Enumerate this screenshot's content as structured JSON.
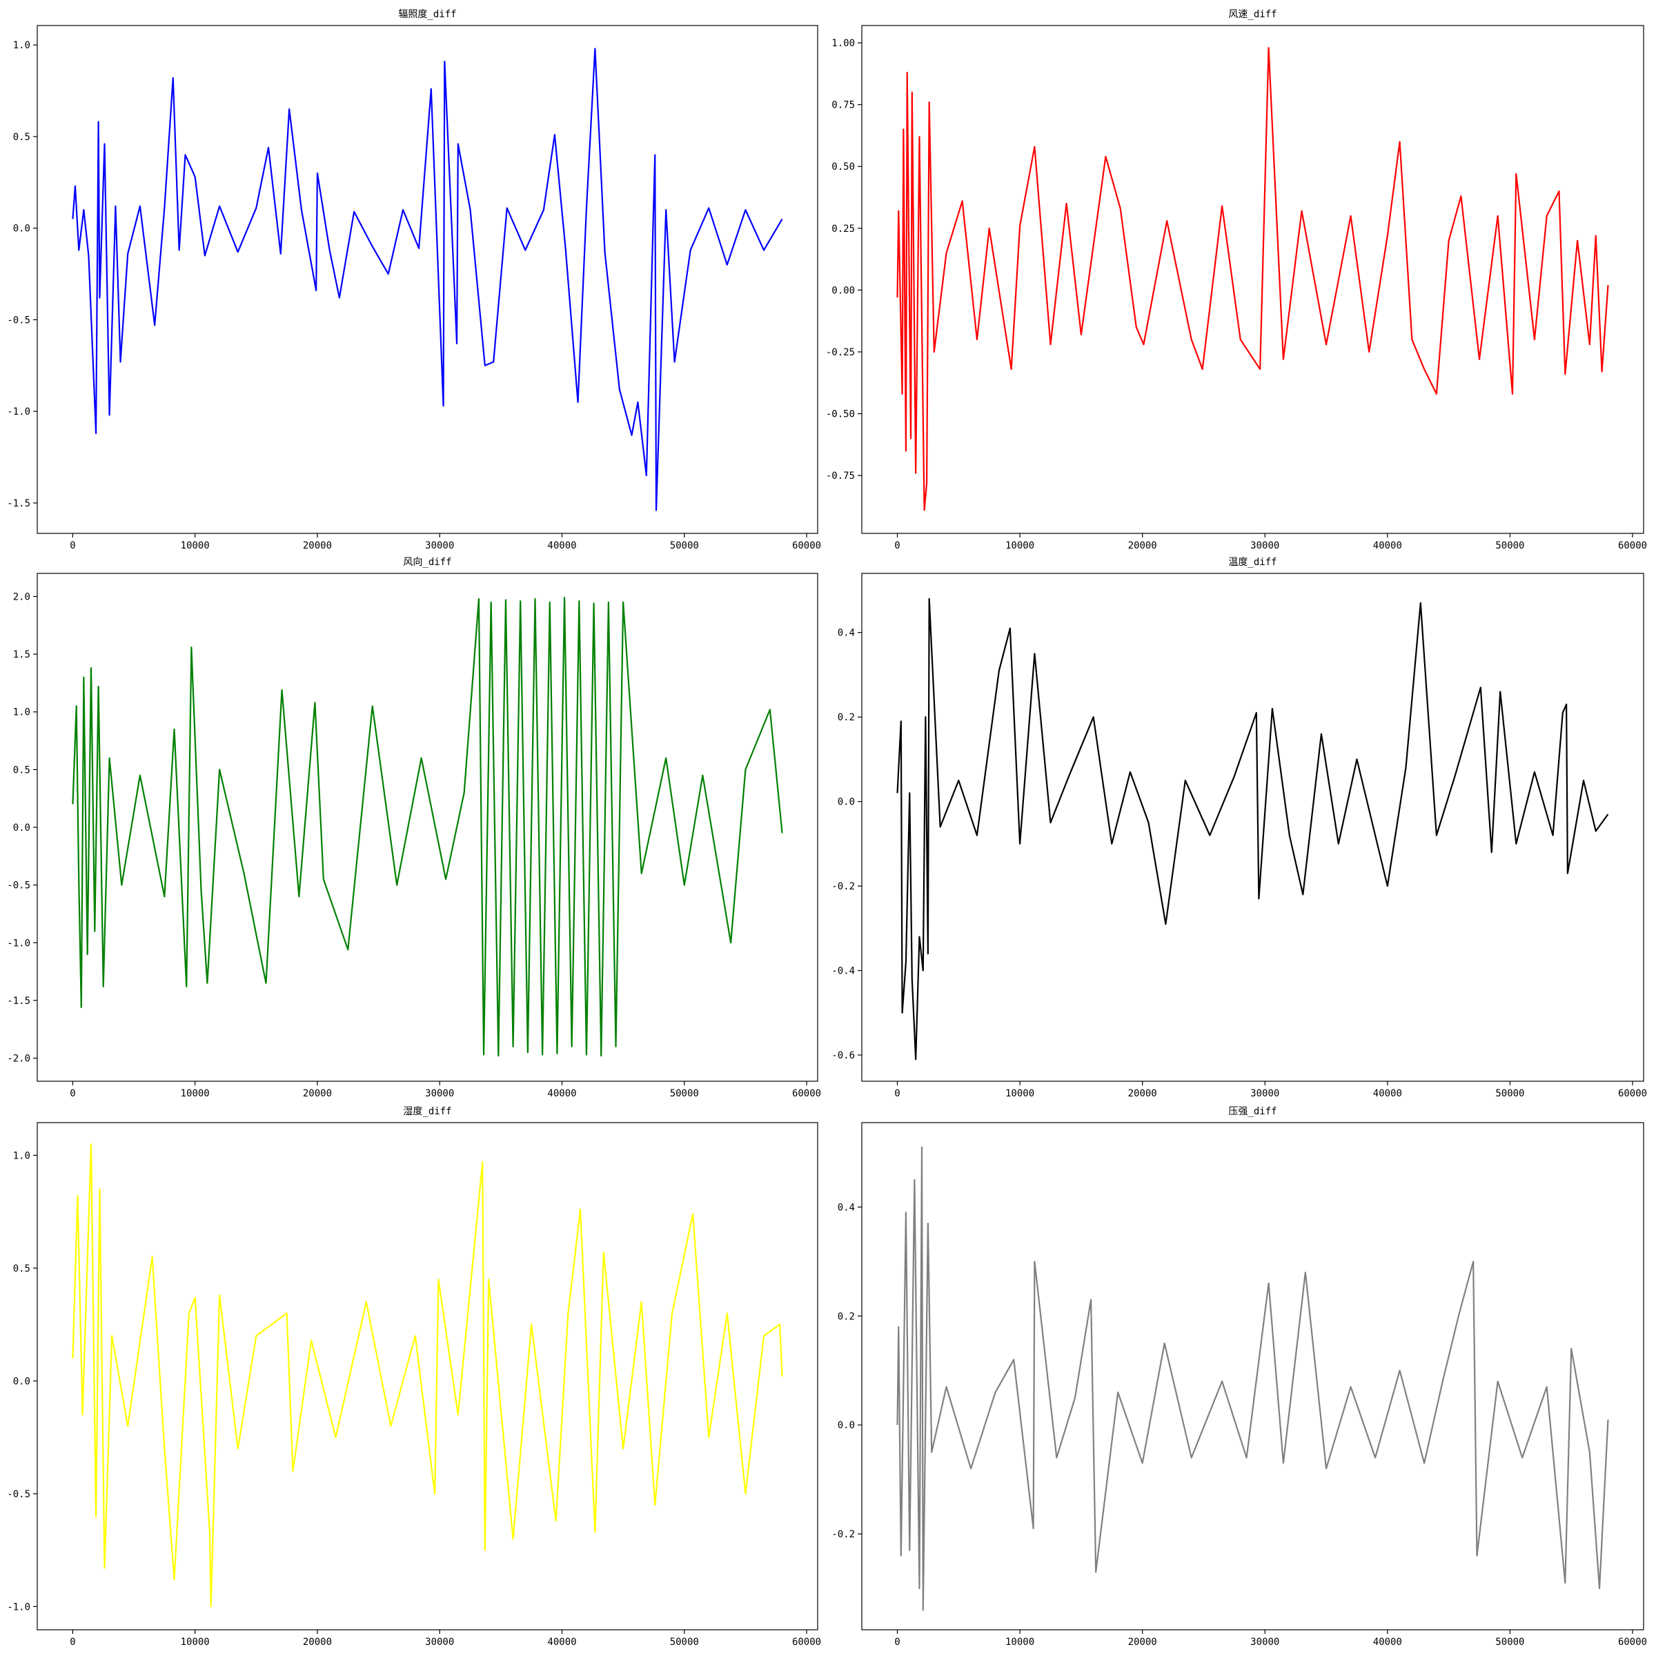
{
  "chart_data": [
    {
      "type": "line",
      "title": "辐照度_diff",
      "color": "blue",
      "x": [
        0,
        200,
        500,
        900,
        1300,
        1900,
        2100,
        2200,
        2600,
        3000,
        3500,
        3900,
        4500,
        5500,
        6700,
        7500,
        8200,
        8700,
        9200,
        10000,
        10800,
        12000,
        13500,
        15000,
        16000,
        17000,
        17700,
        18700,
        19900,
        20000,
        21000,
        21800,
        23000,
        24500,
        25800,
        27000,
        28300,
        29300,
        30300,
        30400,
        31400,
        31500,
        32500,
        33700,
        34400,
        35500,
        37000,
        38500,
        39400,
        40300,
        41300,
        42000,
        42700,
        43500,
        44700,
        45700,
        46200,
        46900,
        47600,
        47700,
        48500,
        49200,
        50500,
        52000,
        53500,
        55000,
        56500,
        58000
      ],
      "values": [
        0.05,
        0.23,
        -0.12,
        0.1,
        -0.15,
        -1.12,
        0.58,
        -0.38,
        0.46,
        -1.02,
        0.12,
        -0.73,
        -0.14,
        0.12,
        -0.53,
        0.11,
        0.82,
        -0.12,
        0.4,
        0.28,
        -0.15,
        0.12,
        -0.13,
        0.11,
        0.44,
        -0.14,
        0.65,
        0.1,
        -0.34,
        0.3,
        -0.12,
        -0.38,
        0.09,
        -0.1,
        -0.25,
        0.1,
        -0.11,
        0.76,
        -0.97,
        0.91,
        -0.63,
        0.46,
        0.1,
        -0.75,
        -0.73,
        0.11,
        -0.12,
        0.1,
        0.51,
        -0.12,
        -0.95,
        0.11,
        0.98,
        -0.13,
        -0.88,
        -1.13,
        -0.95,
        -1.35,
        0.4,
        -1.54,
        0.1,
        -0.73,
        -0.12,
        0.11,
        -0.2,
        0.1,
        -0.12,
        0.05
      ],
      "xlim": [
        -2900,
        60900
      ],
      "xticks": [
        0,
        10000,
        20000,
        30000,
        40000,
        50000,
        60000
      ],
      "ylim": [
        -1.666,
        1.106
      ],
      "yticks": [
        {
          "value": -1.5,
          "label": "-1.5"
        },
        {
          "value": -1.0,
          "label": "-1.0"
        },
        -0.5,
        {
          "value": 0.0,
          "label": "0.0"
        },
        0.5,
        {
          "value": 1.0,
          "label": "1.0"
        }
      ]
    },
    {
      "type": "line",
      "title": "风速_diff",
      "color": "red",
      "x": [
        0,
        100,
        400,
        500,
        700,
        800,
        1100,
        1200,
        1500,
        1800,
        2200,
        2400,
        2600,
        3000,
        4000,
        5300,
        6500,
        7500,
        9300,
        10000,
        11200,
        12500,
        13800,
        15000,
        17000,
        18200,
        19500,
        20100,
        22000,
        24000,
        24900,
        26500,
        28000,
        29600,
        30300,
        31500,
        33000,
        35000,
        37000,
        38500,
        40000,
        41000,
        42000,
        43000,
        44000,
        45000,
        46000,
        47500,
        49000,
        50200,
        50500,
        52000,
        53000,
        54000,
        54500,
        55500,
        56500,
        57000,
        57500,
        58000
      ],
      "values": [
        -0.03,
        0.32,
        -0.42,
        0.65,
        -0.65,
        0.88,
        -0.6,
        0.8,
        -0.74,
        0.62,
        -0.89,
        -0.78,
        0.76,
        -0.25,
        0.15,
        0.36,
        -0.2,
        0.25,
        -0.32,
        0.26,
        0.58,
        -0.22,
        0.35,
        -0.18,
        0.54,
        0.33,
        -0.15,
        -0.22,
        0.28,
        -0.2,
        -0.32,
        0.34,
        -0.2,
        -0.32,
        0.98,
        -0.28,
        0.32,
        -0.22,
        0.3,
        -0.25,
        0.22,
        0.6,
        -0.2,
        -0.32,
        -0.42,
        0.2,
        0.38,
        -0.28,
        0.3,
        -0.42,
        0.47,
        -0.2,
        0.3,
        0.4,
        -0.34,
        0.2,
        -0.22,
        0.22,
        -0.33,
        0.02
      ],
      "xlim": [
        -2900,
        60900
      ],
      "xticks": [
        0,
        10000,
        20000,
        30000,
        40000,
        50000,
        60000
      ],
      "ylim": [
        -0.984,
        1.07
      ],
      "yticks": [
        -0.75,
        {
          "value": -0.5,
          "label": "-0.50"
        },
        -0.25,
        {
          "value": 0.0,
          "label": "0.00"
        },
        0.25,
        {
          "value": 0.5,
          "label": "0.50"
        },
        0.75,
        {
          "value": 1.0,
          "label": "1.00"
        }
      ]
    },
    {
      "type": "line",
      "title": "风向_diff",
      "color": "green",
      "x": [
        0,
        300,
        500,
        700,
        900,
        1200,
        1500,
        1800,
        2100,
        2500,
        3000,
        4000,
        5500,
        7500,
        8300,
        9300,
        9700,
        10500,
        11000,
        12000,
        14000,
        15800,
        17100,
        18500,
        19800,
        20500,
        22500,
        24500,
        26500,
        28500,
        30500,
        32000,
        33200,
        33600,
        34200,
        34800,
        35400,
        36000,
        36600,
        37200,
        37800,
        38400,
        39000,
        39600,
        40200,
        40800,
        41400,
        42000,
        42600,
        43200,
        43800,
        44400,
        45000,
        46500,
        48500,
        50000,
        51500,
        53800,
        55000,
        57000,
        58000
      ],
      "values": [
        0.2,
        1.05,
        -0.48,
        -1.56,
        1.3,
        -1.1,
        1.38,
        -0.9,
        1.22,
        -1.38,
        0.6,
        -0.5,
        0.45,
        -0.6,
        0.85,
        -1.38,
        1.56,
        -0.55,
        -1.35,
        0.5,
        -0.4,
        -1.35,
        1.19,
        -0.6,
        1.08,
        -0.45,
        -1.06,
        1.05,
        -0.5,
        0.6,
        -0.45,
        0.3,
        1.98,
        -1.97,
        1.95,
        -1.98,
        1.97,
        -1.9,
        1.96,
        -1.95,
        1.98,
        -1.97,
        1.95,
        -1.96,
        1.99,
        -1.9,
        1.96,
        -1.97,
        1.94,
        -1.98,
        1.95,
        -1.9,
        1.95,
        -0.4,
        0.6,
        -0.5,
        0.45,
        -1.0,
        0.5,
        1.02,
        -0.05
      ],
      "xlim": [
        -2900,
        60900
      ],
      "xticks": [
        0,
        10000,
        20000,
        30000,
        40000,
        50000,
        60000
      ],
      "ylim": [
        -2.2,
        2.2
      ],
      "yticks": [
        {
          "value": -2.0,
          "label": "-2.0"
        },
        -1.5,
        {
          "value": -1.0,
          "label": "-1.0"
        },
        -0.5,
        {
          "value": 0.0,
          "label": "0.0"
        },
        0.5,
        {
          "value": 1.0,
          "label": "1.0"
        },
        1.5,
        {
          "value": 2.0,
          "label": "2.0"
        }
      ]
    },
    {
      "type": "line",
      "title": "温度_diff",
      "color": "black",
      "x": [
        0,
        300,
        400,
        700,
        1000,
        1200,
        1500,
        1800,
        2100,
        2300,
        2500,
        2600,
        3500,
        5000,
        6500,
        8300,
        9200,
        10000,
        11200,
        12500,
        14000,
        16000,
        17500,
        19000,
        20500,
        21900,
        23500,
        25500,
        27500,
        29300,
        29500,
        30600,
        32000,
        33100,
        34600,
        36000,
        37500,
        39000,
        40000,
        41500,
        42700,
        44000,
        45500,
        47600,
        48500,
        49200,
        50500,
        52000,
        53500,
        54300,
        54600,
        54700,
        56000,
        57000,
        58000
      ],
      "values": [
        0.02,
        0.19,
        -0.5,
        -0.38,
        0.02,
        -0.42,
        -0.61,
        -0.32,
        -0.4,
        0.2,
        -0.36,
        0.48,
        -0.06,
        0.05,
        -0.08,
        0.31,
        0.41,
        -0.1,
        0.35,
        -0.05,
        0.06,
        0.2,
        -0.1,
        0.07,
        -0.05,
        -0.29,
        0.05,
        -0.08,
        0.06,
        0.21,
        -0.23,
        0.22,
        -0.08,
        -0.22,
        0.16,
        -0.1,
        0.1,
        -0.08,
        -0.2,
        0.08,
        0.47,
        -0.08,
        0.06,
        0.27,
        -0.12,
        0.26,
        -0.1,
        0.07,
        -0.08,
        0.21,
        0.23,
        -0.17,
        0.05,
        -0.07,
        -0.03
      ],
      "xlim": [
        -2900,
        60900
      ],
      "xticks": [
        0,
        10000,
        20000,
        30000,
        40000,
        50000,
        60000
      ],
      "ylim": [
        -0.662,
        0.54
      ],
      "yticks": [
        -0.6,
        -0.4,
        -0.2,
        {
          "value": 0.0,
          "label": "0.0"
        },
        0.2,
        0.4
      ]
    },
    {
      "type": "line",
      "title": "湿度_diff",
      "color": "yellow",
      "x": [
        0,
        400,
        800,
        1500,
        1900,
        2200,
        2600,
        3200,
        4500,
        6500,
        7500,
        8300,
        9500,
        10000,
        11200,
        11300,
        12000,
        13500,
        15000,
        17500,
        18000,
        19500,
        21500,
        24000,
        26000,
        28000,
        29600,
        29900,
        31500,
        33500,
        33700,
        34000,
        36000,
        37500,
        39500,
        40500,
        41500,
        42700,
        43400,
        45000,
        46500,
        47600,
        49000,
        50700,
        52000,
        53500,
        55000,
        56500,
        57800,
        58000
      ],
      "values": [
        0.1,
        0.82,
        -0.15,
        1.05,
        -0.6,
        0.85,
        -0.83,
        0.2,
        -0.2,
        0.55,
        -0.3,
        -0.88,
        0.3,
        0.37,
        -0.67,
        -1.0,
        0.38,
        -0.3,
        0.2,
        0.3,
        -0.4,
        0.18,
        -0.25,
        0.35,
        -0.2,
        0.2,
        -0.5,
        0.45,
        -0.15,
        0.97,
        -0.75,
        0.45,
        -0.7,
        0.25,
        -0.62,
        0.3,
        0.76,
        -0.67,
        0.57,
        -0.3,
        0.35,
        -0.55,
        0.3,
        0.74,
        -0.25,
        0.3,
        -0.5,
        0.2,
        0.25,
        0.02
      ],
      "xlim": [
        -2900,
        60900
      ],
      "xticks": [
        0,
        10000,
        20000,
        30000,
        40000,
        50000,
        60000
      ],
      "ylim": [
        -1.103,
        1.145
      ],
      "yticks": [
        {
          "value": -1.0,
          "label": "-1.0"
        },
        -0.5,
        {
          "value": 0.0,
          "label": "0.0"
        },
        0.5,
        {
          "value": 1.0,
          "label": "1.0"
        }
      ]
    },
    {
      "type": "line",
      "title": "压强_diff",
      "color": "gray",
      "x": [
        0,
        100,
        300,
        700,
        1000,
        1400,
        1800,
        2000,
        2100,
        2500,
        2800,
        4000,
        6000,
        8000,
        9500,
        11100,
        11200,
        13000,
        14500,
        15800,
        16200,
        18000,
        20000,
        21800,
        24000,
        26500,
        28500,
        30300,
        31500,
        33300,
        35000,
        37000,
        39000,
        41000,
        43000,
        44500,
        45800,
        47000,
        47300,
        49000,
        51000,
        53000,
        54500,
        55000,
        56500,
        57300,
        58000
      ],
      "values": [
        0.0,
        0.18,
        -0.24,
        0.39,
        -0.23,
        0.45,
        -0.3,
        0.51,
        -0.34,
        0.37,
        -0.05,
        0.07,
        -0.08,
        0.06,
        0.12,
        -0.19,
        0.3,
        -0.06,
        0.05,
        0.23,
        -0.27,
        0.06,
        -0.07,
        0.15,
        -0.06,
        0.08,
        -0.06,
        0.26,
        -0.07,
        0.28,
        -0.08,
        0.07,
        -0.06,
        0.1,
        -0.07,
        0.08,
        0.2,
        0.3,
        -0.24,
        0.08,
        -0.06,
        0.07,
        -0.29,
        0.14,
        -0.05,
        -0.3,
        0.01
      ],
      "xlim": [
        -2900,
        60900
      ],
      "xticks": [
        0,
        10000,
        20000,
        30000,
        40000,
        50000,
        60000
      ],
      "ylim": [
        -0.376,
        0.555
      ],
      "yticks": [
        -0.2,
        {
          "value": 0.0,
          "label": "0.0"
        },
        0.2,
        0.4
      ]
    }
  ]
}
